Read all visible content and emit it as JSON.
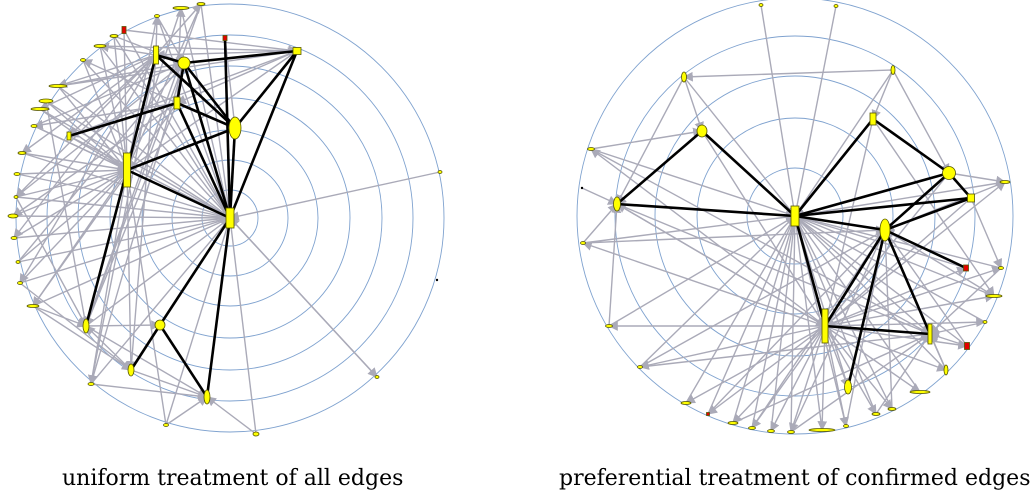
{
  "figure": {
    "captions": {
      "left": "uniform treatment of all edges",
      "right": "preferential treatment of confirmed edges"
    },
    "colors": {
      "background": "#ffffff",
      "ring": "#7fa2cf",
      "unconfirmed_edge": "#aaaab8",
      "confirmed_edge": "#000000",
      "node": "#ffff00",
      "node_alt": "#e60000",
      "node_outline": "#555500"
    },
    "panels": [
      {
        "id": "uniform",
        "description_key": "left",
        "ring_count": 7,
        "center_node": "c"
      },
      {
        "id": "preferential",
        "description_key": "right",
        "ring_count": 5,
        "center_node": "c"
      }
    ]
  }
}
